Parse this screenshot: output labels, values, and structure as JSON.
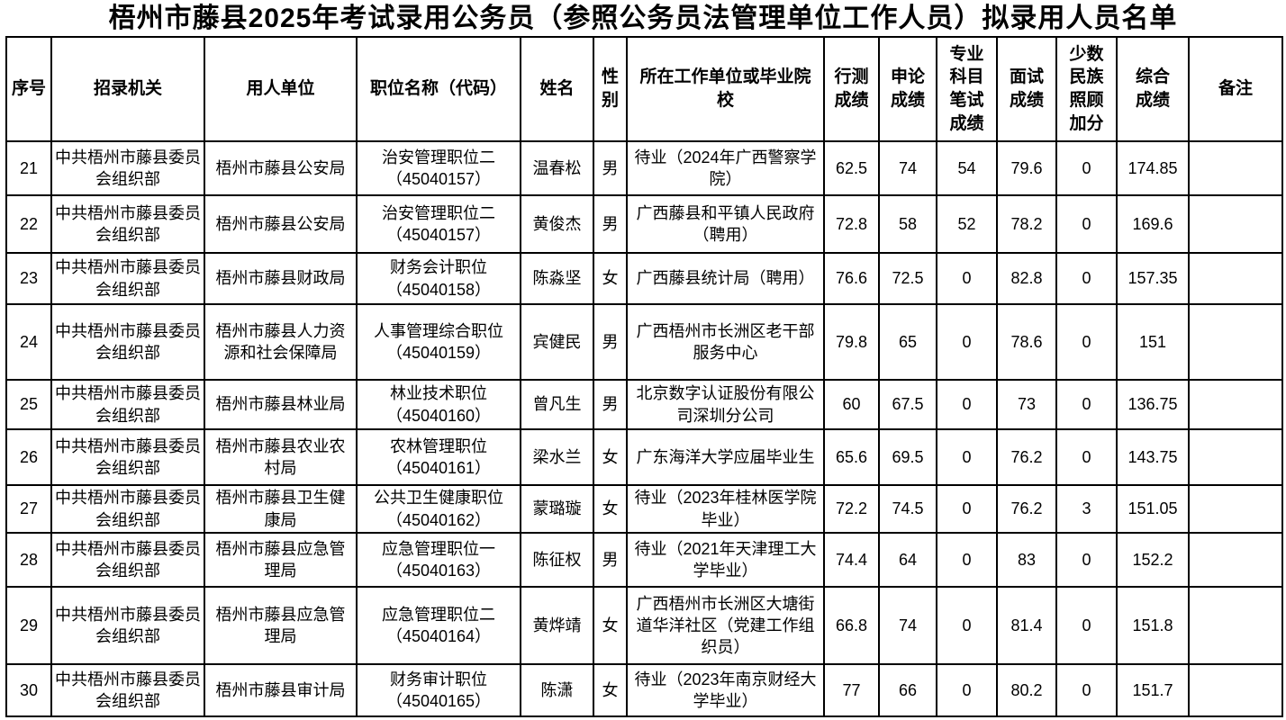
{
  "title": "梧州市藤县2025年考试录用公务员（参照公务员法管理单位工作人员）拟录用人员名单",
  "table": {
    "columns": [
      {
        "key": "seq",
        "label": "序号"
      },
      {
        "key": "agency",
        "label": "招录机关"
      },
      {
        "key": "employer",
        "label": "用人单位"
      },
      {
        "key": "position",
        "label": "职位名称（代码）"
      },
      {
        "key": "name",
        "label": "姓名"
      },
      {
        "key": "gender",
        "label": "性别"
      },
      {
        "key": "workplace",
        "label": "所在工作单位或毕业院\n校"
      },
      {
        "key": "xingce",
        "label": "行测\n成绩"
      },
      {
        "key": "shenlun",
        "label": "申论\n成绩"
      },
      {
        "key": "zhuanye",
        "label": "专业\n科目\n笔试\n成绩"
      },
      {
        "key": "mianshi",
        "label": "面试\n成绩"
      },
      {
        "key": "jiafen",
        "label": "少数\n民族\n照顾\n加分"
      },
      {
        "key": "zonghe",
        "label": "综合\n成绩"
      },
      {
        "key": "remark",
        "label": "备注"
      }
    ],
    "rows": [
      {
        "seq": "21",
        "agency": "中共梧州市藤县委员会组织部",
        "employer": "梧州市藤县公安局",
        "position": "治安管理职位二\n（45040157）",
        "name": "温春松",
        "gender": "男",
        "workplace": "待业（2024年广西警察学院）",
        "xingce": "62.5",
        "shenlun": "74",
        "zhuanye": "54",
        "mianshi": "79.6",
        "jiafen": "0",
        "zonghe": "174.85",
        "remark": ""
      },
      {
        "seq": "22",
        "agency": "中共梧州市藤县委员会组织部",
        "employer": "梧州市藤县公安局",
        "position": "治安管理职位二\n（45040157）",
        "name": "黄俊杰",
        "gender": "男",
        "workplace": "广西藤县和平镇人民政府（聘用）",
        "xingce": "72.8",
        "shenlun": "58",
        "zhuanye": "52",
        "mianshi": "78.2",
        "jiafen": "0",
        "zonghe": "169.6",
        "remark": ""
      },
      {
        "seq": "23",
        "agency": "中共梧州市藤县委员会组织部",
        "employer": "梧州市藤县财政局",
        "position": "财务会计职位\n（45040158）",
        "name": "陈淼坚",
        "gender": "女",
        "workplace": "广西藤县统计局（聘用）",
        "xingce": "76.6",
        "shenlun": "72.5",
        "zhuanye": "0",
        "mianshi": "82.8",
        "jiafen": "0",
        "zonghe": "157.35",
        "remark": ""
      },
      {
        "seq": "24",
        "agency": "中共梧州市藤县委员会组织部",
        "employer": "梧州市藤县人力资源和社会保障局",
        "position": "人事管理综合职位\n（45040159）",
        "name": "宾健民",
        "gender": "男",
        "workplace": "广西梧州市长洲区老干部服务中心",
        "xingce": "79.8",
        "shenlun": "65",
        "zhuanye": "0",
        "mianshi": "78.6",
        "jiafen": "0",
        "zonghe": "151",
        "remark": ""
      },
      {
        "seq": "25",
        "agency": "中共梧州市藤县委员会组织部",
        "employer": "梧州市藤县林业局",
        "position": "林业技术职位\n（45040160）",
        "name": "曾凡生",
        "gender": "男",
        "workplace": "北京数字认证股份有限公司深圳分公司",
        "xingce": "60",
        "shenlun": "67.5",
        "zhuanye": "0",
        "mianshi": "73",
        "jiafen": "0",
        "zonghe": "136.75",
        "remark": ""
      },
      {
        "seq": "26",
        "agency": "中共梧州市藤县委员会组织部",
        "employer": "梧州市藤县农业农村局",
        "position": "农林管理职位\n（45040161）",
        "name": "梁水兰",
        "gender": "女",
        "workplace": "广东海洋大学应届毕业生",
        "xingce": "65.6",
        "shenlun": "69.5",
        "zhuanye": "0",
        "mianshi": "76.2",
        "jiafen": "0",
        "zonghe": "143.75",
        "remark": ""
      },
      {
        "seq": "27",
        "agency": "中共梧州市藤县委员会组织部",
        "employer": "梧州市藤县卫生健康局",
        "position": "公共卫生健康职位\n（45040162）",
        "name": "蒙璐璇",
        "gender": "女",
        "workplace": "待业（2023年桂林医学院毕业）",
        "xingce": "72.2",
        "shenlun": "74.5",
        "zhuanye": "0",
        "mianshi": "76.2",
        "jiafen": "3",
        "zonghe": "151.05",
        "remark": ""
      },
      {
        "seq": "28",
        "agency": "中共梧州市藤县委员会组织部",
        "employer": "梧州市藤县应急管理局",
        "position": "应急管理职位一\n（45040163）",
        "name": "陈征权",
        "gender": "男",
        "workplace": "待业（2021年天津理工大学毕业）",
        "xingce": "74.4",
        "shenlun": "64",
        "zhuanye": "0",
        "mianshi": "83",
        "jiafen": "0",
        "zonghe": "152.2",
        "remark": ""
      },
      {
        "seq": "29",
        "agency": "中共梧州市藤县委员会组织部",
        "employer": "梧州市藤县应急管理局",
        "position": "应急管理职位二\n（45040164）",
        "name": "黄烨靖",
        "gender": "女",
        "workplace": "广西梧州市长洲区大塘街道华洋社区（党建工作组织员）",
        "xingce": "66.8",
        "shenlun": "74",
        "zhuanye": "0",
        "mianshi": "81.4",
        "jiafen": "0",
        "zonghe": "151.8",
        "remark": ""
      },
      {
        "seq": "30",
        "agency": "中共梧州市藤县委员会组织部",
        "employer": "梧州市藤县审计局",
        "position": "财务审计职位\n（45040165）",
        "name": "陈潇",
        "gender": "女",
        "workplace": "待业（2023年南京财经大学毕业）",
        "xingce": "77",
        "shenlun": "66",
        "zhuanye": "0",
        "mianshi": "80.2",
        "jiafen": "0",
        "zonghe": "151.7",
        "remark": ""
      }
    ]
  }
}
